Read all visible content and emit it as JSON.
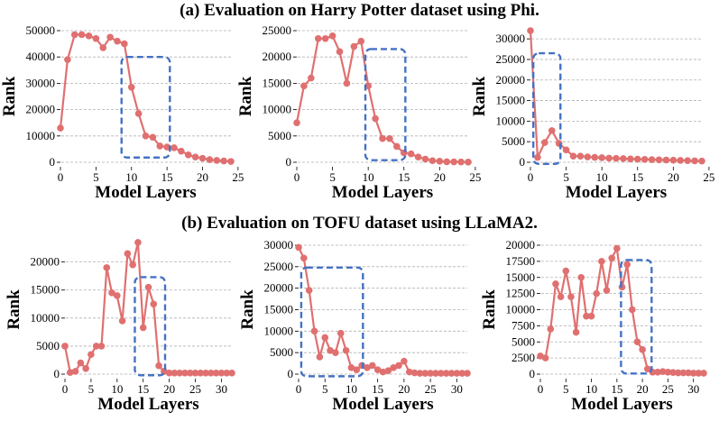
{
  "titles": {
    "a": "(a) Evaluation on Harry Potter dataset using Phi.",
    "b": "(b) Evaluation on TOFU dataset using LLaMA2."
  },
  "style": {
    "line_color": "#e07070",
    "marker_color": "#e07070",
    "box_color": "#4472c4",
    "grid_color": "#b0b0b0"
  },
  "chart_data": [
    {
      "type": "line",
      "group": "a",
      "xlabel": "Model Layers",
      "ylabel": "Rank",
      "xlim": [
        0,
        24
      ],
      "ylim": [
        0,
        50000
      ],
      "xticks": [
        0,
        5,
        10,
        15,
        20,
        25
      ],
      "yticks": [
        0,
        10000,
        20000,
        30000,
        40000,
        50000
      ],
      "x": [
        0,
        1,
        2,
        3,
        4,
        5,
        6,
        7,
        8,
        9,
        10,
        11,
        12,
        13,
        14,
        15,
        16,
        17,
        18,
        19,
        20,
        21,
        22,
        23,
        24
      ],
      "values": [
        13000,
        39000,
        48500,
        48500,
        48000,
        47000,
        43500,
        47500,
        46000,
        45000,
        28500,
        18500,
        10000,
        9500,
        6200,
        5800,
        5500,
        4200,
        2800,
        2000,
        1500,
        1000,
        700,
        500,
        300
      ],
      "highlight": {
        "x0": 8.6,
        "x1": 15.4,
        "y0": 1800,
        "y1": 40000
      }
    },
    {
      "type": "line",
      "group": "a",
      "xlabel": "Model Layers",
      "ylabel": "Rank",
      "xlim": [
        0,
        24
      ],
      "ylim": [
        0,
        25000
      ],
      "xticks": [
        0,
        5,
        10,
        15,
        20,
        25
      ],
      "yticks": [
        0,
        5000,
        10000,
        15000,
        20000,
        25000
      ],
      "x": [
        0,
        1,
        2,
        3,
        4,
        5,
        6,
        7,
        8,
        9,
        10,
        11,
        12,
        13,
        14,
        15,
        16,
        17,
        18,
        19,
        20,
        21,
        22,
        23,
        24
      ],
      "values": [
        7500,
        14500,
        16000,
        23500,
        23500,
        24000,
        21000,
        15000,
        22000,
        23000,
        14500,
        8300,
        4500,
        4500,
        3000,
        1800,
        1600,
        1000,
        600,
        300,
        200,
        100,
        80,
        50,
        30
      ],
      "highlight": {
        "x0": 9.6,
        "x1": 15.2,
        "y0": 400,
        "y1": 21500
      }
    },
    {
      "type": "line",
      "group": "a",
      "xlabel": "Model Layers",
      "ylabel": "Rank",
      "xlim": [
        0,
        24
      ],
      "ylim": [
        0,
        32000
      ],
      "xticks": [
        0,
        5,
        10,
        15,
        20,
        25
      ],
      "yticks": [
        0,
        5000,
        10000,
        15000,
        20000,
        25000,
        30000
      ],
      "x": [
        0,
        1,
        2,
        3,
        4,
        5,
        6,
        7,
        8,
        9,
        10,
        11,
        12,
        13,
        14,
        15,
        16,
        17,
        18,
        19,
        20,
        21,
        22,
        23,
        24
      ],
      "values": [
        32000,
        1200,
        4800,
        7700,
        4600,
        3000,
        1500,
        1500,
        1300,
        1200,
        1100,
        1000,
        950,
        900,
        800,
        750,
        700,
        650,
        600,
        550,
        500,
        450,
        400,
        350,
        300
      ],
      "highlight": {
        "x0": 0.4,
        "x1": 4.2,
        "y0": -400,
        "y1": 26500
      }
    },
    {
      "type": "line",
      "group": "b",
      "xlabel": "Model Layers",
      "ylabel": "Rank",
      "xlim": [
        0,
        32
      ],
      "ylim": [
        0,
        23000
      ],
      "xticks": [
        0,
        5,
        10,
        15,
        20,
        25,
        30
      ],
      "yticks": [
        0,
        5000,
        10000,
        15000,
        20000
      ],
      "x": [
        0,
        1,
        2,
        3,
        4,
        5,
        6,
        7,
        8,
        9,
        10,
        11,
        12,
        13,
        14,
        15,
        16,
        17,
        18,
        19,
        20,
        21,
        22,
        23,
        24,
        25,
        26,
        27,
        28,
        29,
        30,
        31,
        32
      ],
      "values": [
        5000,
        300,
        500,
        2000,
        1000,
        3500,
        5000,
        5000,
        19000,
        14500,
        14000,
        9500,
        21500,
        19500,
        23500,
        8300,
        15500,
        12500,
        1500,
        500,
        200,
        200,
        200,
        200,
        200,
        200,
        200,
        200,
        200,
        200,
        200,
        200,
        200
      ],
      "highlight": {
        "x0": 13.4,
        "x1": 19.2,
        "y0": -200,
        "y1": 17300
      }
    },
    {
      "type": "line",
      "group": "b",
      "xlabel": "Model Layers",
      "ylabel": "Rank",
      "xlim": [
        0,
        32
      ],
      "ylim": [
        0,
        30000
      ],
      "xticks": [
        0,
        5,
        10,
        15,
        20,
        25,
        30
      ],
      "yticks": [
        0,
        5000,
        10000,
        15000,
        20000,
        25000,
        30000
      ],
      "x": [
        0,
        1,
        2,
        3,
        4,
        5,
        6,
        7,
        8,
        9,
        10,
        11,
        12,
        13,
        14,
        15,
        16,
        17,
        18,
        19,
        20,
        21,
        22,
        23,
        24,
        25,
        26,
        27,
        28,
        29,
        30,
        31,
        32
      ],
      "values": [
        29500,
        27000,
        19500,
        10000,
        4000,
        8500,
        5500,
        5000,
        9500,
        5500,
        1500,
        1000,
        2000,
        1500,
        2000,
        1000,
        500,
        800,
        1500,
        2000,
        3000,
        500,
        300,
        200,
        200,
        200,
        200,
        200,
        200,
        200,
        200,
        200,
        200
      ],
      "highlight": {
        "x0": 0.5,
        "x1": 12.2,
        "y0": -500,
        "y1": 24800
      }
    },
    {
      "type": "line",
      "group": "b",
      "xlabel": "Model Layers",
      "ylabel": "Rank",
      "xlim": [
        0,
        32
      ],
      "ylim": [
        0,
        20000
      ],
      "xticks": [
        0,
        5,
        10,
        15,
        20,
        25,
        30
      ],
      "yticks": [
        0,
        2500,
        5000,
        7500,
        10000,
        12500,
        15000,
        17500,
        20000
      ],
      "x": [
        0,
        1,
        2,
        3,
        4,
        5,
        6,
        7,
        8,
        9,
        10,
        11,
        12,
        13,
        14,
        15,
        16,
        17,
        18,
        19,
        20,
        21,
        22,
        23,
        24,
        25,
        26,
        27,
        28,
        29,
        30,
        31,
        32
      ],
      "values": [
        2800,
        2500,
        7000,
        14000,
        12000,
        16000,
        12000,
        6500,
        15000,
        9000,
        9000,
        12500,
        17500,
        13000,
        18000,
        19500,
        13500,
        17000,
        10000,
        5000,
        3800,
        800,
        300,
        300,
        400,
        300,
        250,
        200,
        200,
        200,
        150,
        150,
        150
      ],
      "highlight": {
        "x0": 15.8,
        "x1": 21.8,
        "y0": 100,
        "y1": 17700
      }
    }
  ]
}
